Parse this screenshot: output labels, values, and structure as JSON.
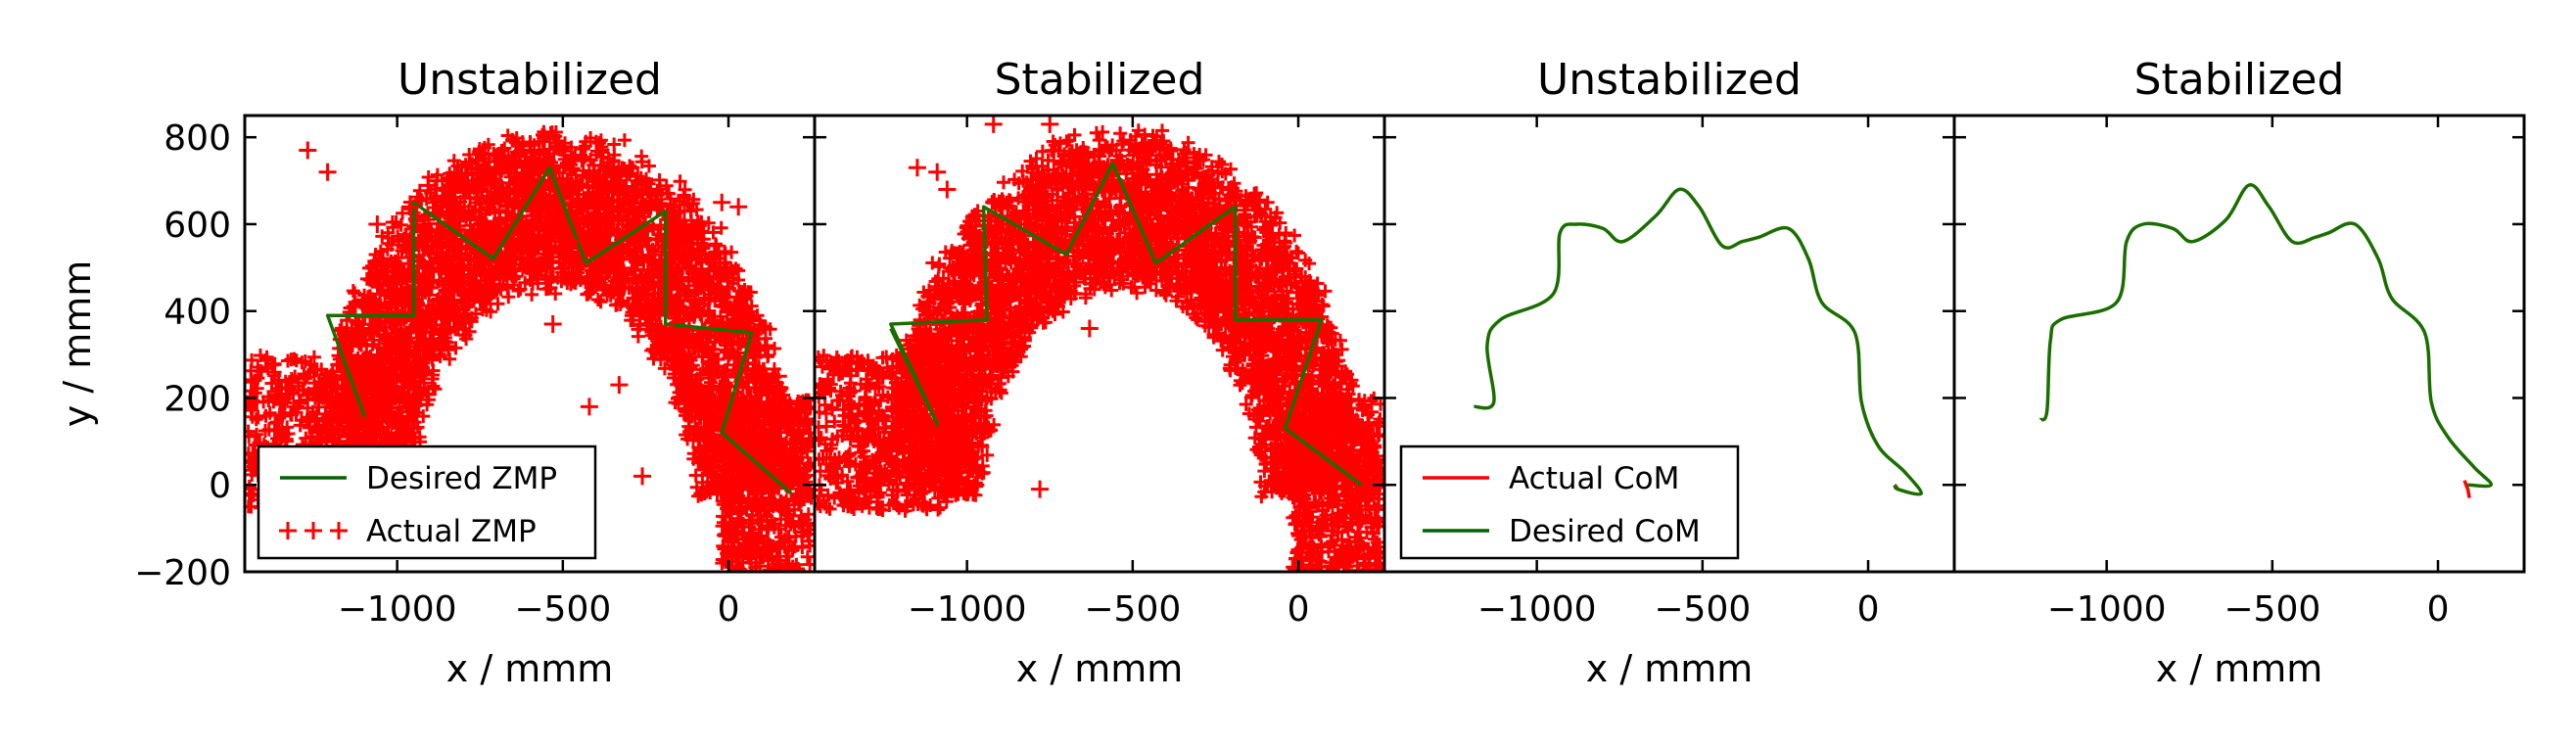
{
  "figure": {
    "panels": [
      {
        "title": "Unstabilized",
        "kind": "zmp",
        "seed": 11
      },
      {
        "title": "Stabilized",
        "kind": "zmp",
        "seed": 29
      },
      {
        "title": "Unstabilized",
        "kind": "com",
        "seed": 0
      },
      {
        "title": "Stabilized",
        "kind": "com",
        "seed": 0
      }
    ],
    "legends": {
      "zmp": [
        {
          "label": "Desired ZMP",
          "color": "#006400",
          "marker": "line"
        },
        {
          "label": "Actual ZMP",
          "color": "#ff0000",
          "marker": "plus"
        }
      ],
      "com": [
        {
          "label": "Actual CoM",
          "color": "#ff0000",
          "marker": "line"
        },
        {
          "label": "Desired CoM",
          "color": "#006400",
          "marker": "line"
        }
      ]
    },
    "colors": {
      "desired": "#1a6e00",
      "actual": "#ff0000"
    }
  },
  "chart_data": [
    {
      "type": "scatter",
      "title": "Unstabilized",
      "xlabel": "x / mmm",
      "ylabel": "y / mmm",
      "xlim": [
        -1460,
        260
      ],
      "ylim": [
        -200,
        850
      ],
      "xticks": [
        -1000,
        -500,
        0
      ],
      "yticks": [
        -200,
        0,
        200,
        400,
        600,
        800
      ],
      "tick_labels_x": [
        "−1000",
        "−500",
        "0"
      ],
      "tick_labels_y": [
        "−200",
        "0",
        "200",
        "400",
        "600",
        "800"
      ],
      "series": [
        {
          "name": "Desired ZMP",
          "kind": "line",
          "x": [
            -1210,
            -1100,
            -1210,
            -950,
            -950,
            -710,
            -540,
            -430,
            -190,
            -190,
            70,
            -20,
            190
          ],
          "y": [
            390,
            160,
            390,
            390,
            650,
            520,
            730,
            510,
            630,
            370,
            350,
            120,
            -20
          ]
        },
        {
          "name": "Actual ZMP",
          "kind": "scatter",
          "x": [
            -1270,
            -1210,
            -1060,
            -960,
            -880,
            -780,
            -620,
            -480,
            -360,
            -300,
            -230,
            -170,
            -120,
            -60,
            -20,
            30,
            80,
            150,
            -330,
            -420,
            -260,
            -530,
            -1240,
            -950
          ],
          "y": [
            770,
            720,
            600,
            640,
            700,
            660,
            780,
            560,
            620,
            610,
            420,
            350,
            470,
            430,
            650,
            640,
            180,
            250,
            230,
            180,
            20,
            370,
            130,
            130
          ]
        }
      ]
    },
    {
      "type": "scatter",
      "title": "Stabilized",
      "xlabel": "x / mmm",
      "ylabel": "",
      "xlim": [
        -1460,
        260
      ],
      "ylim": [
        -200,
        850
      ],
      "xticks": [
        -1000,
        -500,
        0
      ],
      "yticks": [
        -200,
        0,
        200,
        400,
        600,
        800
      ],
      "tick_labels_x": [
        "−1000",
        "−500",
        "0"
      ],
      "tick_labels_y": [],
      "series": [
        {
          "name": "Desired ZMP",
          "kind": "line",
          "x": [
            -1230,
            -1090,
            -1230,
            -940,
            -950,
            -700,
            -560,
            -430,
            -190,
            -190,
            70,
            -40,
            190
          ],
          "y": [
            360,
            140,
            370,
            380,
            640,
            530,
            740,
            510,
            640,
            380,
            380,
            130,
            0
          ]
        },
        {
          "name": "Actual ZMP",
          "kind": "scatter",
          "x": [
            -1150,
            -1090,
            -1060,
            -920,
            -750,
            -630,
            -780
          ],
          "y": [
            730,
            720,
            680,
            830,
            830,
            360,
            -10
          ]
        }
      ]
    },
    {
      "type": "line",
      "title": "Unstabilized",
      "xlabel": "x / mmm",
      "ylabel": "",
      "xlim": [
        -1460,
        260
      ],
      "ylim": [
        -200,
        850
      ],
      "xticks": [
        -1000,
        -500,
        0
      ],
      "yticks": [
        -200,
        0,
        200,
        400,
        600,
        800
      ],
      "tick_labels_x": [
        "−1000",
        "−500",
        "0"
      ],
      "tick_labels_y": [],
      "series": [
        {
          "name": "Actual CoM",
          "x": [
            80,
            90
          ],
          "y": [
            0,
            -10
          ]
        },
        {
          "name": "Desired CoM",
          "x": [
            -1190,
            -1130,
            -1150,
            -1110,
            -950,
            -930,
            -880,
            -800,
            -740,
            -640,
            -570,
            -510,
            -440,
            -380,
            -330,
            -240,
            -180,
            -140,
            -40,
            -20,
            30,
            110,
            160,
            90,
            80
          ],
          "y": [
            180,
            190,
            320,
            380,
            440,
            580,
            600,
            590,
            560,
            620,
            680,
            640,
            550,
            560,
            570,
            590,
            520,
            420,
            350,
            190,
            90,
            30,
            -20,
            -10,
            0
          ]
        }
      ]
    },
    {
      "type": "line",
      "title": "Stabilized",
      "xlabel": "x / mmm",
      "ylabel": "",
      "xlim": [
        -1460,
        260
      ],
      "ylim": [
        -200,
        850
      ],
      "xticks": [
        -1000,
        -500,
        0
      ],
      "yticks": [
        -200,
        0,
        200,
        400,
        600,
        800
      ],
      "tick_labels_x": [
        "−1000",
        "−500",
        "0"
      ],
      "tick_labels_y": [],
      "series": [
        {
          "name": "Actual CoM",
          "x": [
            80,
            90,
            95
          ],
          "y": [
            10,
            -10,
            -30
          ]
        },
        {
          "name": "Desired CoM",
          "x": [
            -1200,
            -1180,
            -1170,
            -1140,
            -970,
            -940,
            -890,
            -800,
            -740,
            -640,
            -570,
            -510,
            -440,
            -370,
            -330,
            -250,
            -180,
            -140,
            -40,
            -20,
            30,
            110,
            160,
            90
          ],
          "y": [
            150,
            170,
            330,
            380,
            420,
            560,
            600,
            590,
            560,
            610,
            690,
            640,
            560,
            570,
            580,
            600,
            520,
            430,
            350,
            190,
            110,
            40,
            0,
            0
          ]
        }
      ]
    }
  ]
}
